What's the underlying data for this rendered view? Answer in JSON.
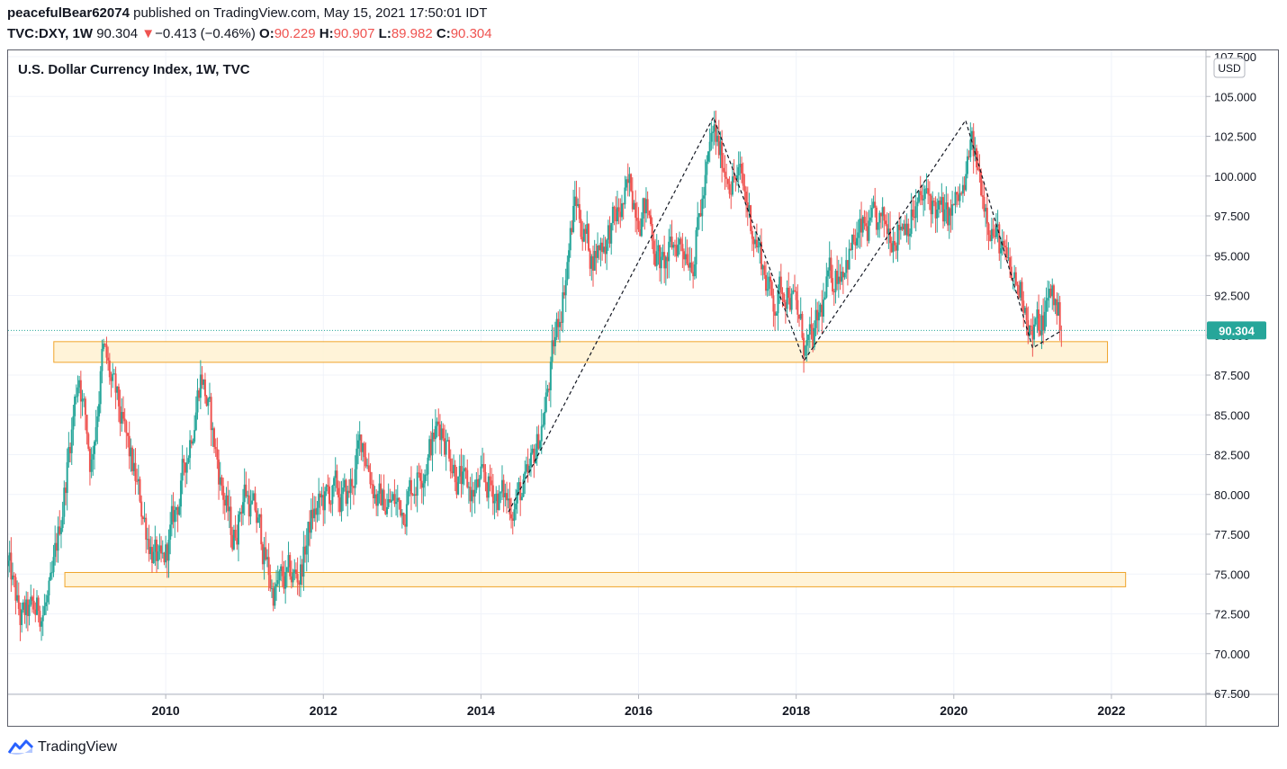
{
  "header": {
    "author": "peacefulBear62074",
    "published_text": "published on TradingView.com, May 15, 2021 17:50:01 IDT",
    "symbol": "TVC:DXY, 1W",
    "last": "90.304",
    "change_arrow": "▼",
    "change": "−0.413 (−0.46%)",
    "o_label": "O:",
    "o_value": "90.229",
    "h_label": "H:",
    "h_value": "90.907",
    "l_label": "L:",
    "l_value": "89.982",
    "c_label": "C:",
    "c_value": "90.304"
  },
  "footer": {
    "brand": "TradingView"
  },
  "colors": {
    "up": "#26a69a",
    "down": "#ef5350",
    "zone_fill": "#fff3d6",
    "zone_stroke": "#f0a020",
    "price_tag": "#26a69a"
  },
  "chart_data": {
    "type": "candlestick",
    "title": "U.S. Dollar Currency Index, 1W, TVC",
    "currency_badge": "USD",
    "current_price_label": "90.304",
    "current_price": 90.304,
    "ylim": [
      67.5,
      107.5
    ],
    "xlim": [
      2008.0,
      2023.2
    ],
    "y_ticks": [
      "67.500",
      "70.000",
      "72.500",
      "75.000",
      "77.500",
      "80.000",
      "82.500",
      "85.000",
      "87.500",
      "90.000",
      "92.500",
      "95.000",
      "97.500",
      "100.000",
      "102.500",
      "105.000",
      "107.500"
    ],
    "x_ticks": [
      "2010",
      "2012",
      "2014",
      "2016",
      "2018",
      "2020",
      "2022"
    ],
    "price_path": [
      [
        2008.0,
        75.5
      ],
      [
        2008.15,
        72.0
      ],
      [
        2008.35,
        72.5
      ],
      [
        2008.55,
        73.5
      ],
      [
        2008.8,
        84.0
      ],
      [
        2008.9,
        88.0
      ],
      [
        2009.05,
        82.0
      ],
      [
        2009.2,
        89.0
      ],
      [
        2009.45,
        84.0
      ],
      [
        2009.7,
        79.0
      ],
      [
        2009.9,
        75.5
      ],
      [
        2009.95,
        74.8
      ],
      [
        2010.2,
        80.5
      ],
      [
        2010.45,
        88.0
      ],
      [
        2010.6,
        83.5
      ],
      [
        2010.85,
        77.0
      ],
      [
        2011.0,
        80.5
      ],
      [
        2011.2,
        77.5
      ],
      [
        2011.35,
        74.0
      ],
      [
        2011.55,
        74.5
      ],
      [
        2011.7,
        75.0
      ],
      [
        2011.85,
        78.5
      ],
      [
        2012.1,
        80.0
      ],
      [
        2012.3,
        79.5
      ],
      [
        2012.5,
        83.5
      ],
      [
        2012.7,
        79.5
      ],
      [
        2013.0,
        79.3
      ],
      [
        2013.3,
        82.5
      ],
      [
        2013.5,
        84.5
      ],
      [
        2013.8,
        80.0
      ],
      [
        2014.1,
        80.5
      ],
      [
        2014.35,
        79.5
      ],
      [
        2014.6,
        80.3
      ],
      [
        2014.85,
        86.5
      ],
      [
        2015.0,
        91.5
      ],
      [
        2015.2,
        98.5
      ],
      [
        2015.4,
        95.0
      ],
      [
        2015.7,
        97.0
      ],
      [
        2015.9,
        99.0
      ],
      [
        2016.1,
        98.0
      ],
      [
        2016.3,
        94.0
      ],
      [
        2016.5,
        96.0
      ],
      [
        2016.7,
        95.5
      ],
      [
        2016.85,
        99.5
      ],
      [
        2016.95,
        102.5
      ],
      [
        2017.05,
        101.0
      ],
      [
        2017.3,
        99.5
      ],
      [
        2017.5,
        96.0
      ],
      [
        2017.7,
        92.0
      ],
      [
        2017.9,
        93.5
      ],
      [
        2018.1,
        89.5
      ],
      [
        2018.2,
        89.0
      ],
      [
        2018.4,
        93.0
      ],
      [
        2018.6,
        95.0
      ],
      [
        2018.9,
        96.5
      ],
      [
        2019.1,
        96.5
      ],
      [
        2019.4,
        97.5
      ],
      [
        2019.7,
        98.5
      ],
      [
        2019.9,
        97.0
      ],
      [
        2020.15,
        99.0
      ],
      [
        2020.2,
        102.0
      ],
      [
        2020.35,
        99.5
      ],
      [
        2020.5,
        97.0
      ],
      [
        2020.7,
        93.5
      ],
      [
        2020.9,
        92.5
      ],
      [
        2021.0,
        90.0
      ],
      [
        2021.1,
        90.5
      ],
      [
        2021.25,
        92.8
      ],
      [
        2021.37,
        90.3
      ]
    ],
    "zones": [
      {
        "name": "upper support zone",
        "x_from": 2008.58,
        "x_to": 2021.95,
        "y_from": 88.3,
        "y_to": 89.6
      },
      {
        "name": "lower support zone",
        "x_from": 2008.72,
        "x_to": 2022.18,
        "y_from": 74.2,
        "y_to": 75.1
      }
    ],
    "trendline": [
      [
        2014.35,
        78.9
      ],
      [
        2016.95,
        103.7
      ],
      [
        2018.1,
        88.4
      ],
      [
        2020.15,
        103.5
      ],
      [
        2021.0,
        89.2
      ],
      [
        2021.37,
        90.3
      ]
    ]
  }
}
